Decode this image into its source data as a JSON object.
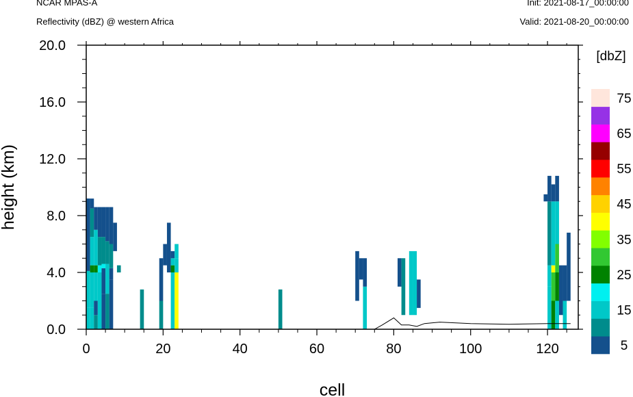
{
  "header": {
    "model": "NCAR MPAS-A",
    "field": "Reflectivity (dBZ) @ western Africa",
    "init": "Init: 2021-08-17_00:00:00",
    "valid": "Valid: 2021-08-20_00:00:00"
  },
  "chart_data": {
    "type": "heatmap",
    "title": "Reflectivity (dBZ) @ western Africa",
    "xlabel": "cell",
    "ylabel": "height (km)",
    "xlim": [
      0,
      128
    ],
    "ylim": [
      0,
      20
    ],
    "x_ticks": [
      0,
      20,
      40,
      60,
      80,
      100,
      120
    ],
    "x_tick_labels": [
      "0",
      "20",
      "40",
      "60",
      "80",
      "100",
      "120"
    ],
    "y_ticks": [
      0,
      4,
      8,
      12,
      16,
      20
    ],
    "y_tick_labels": [
      "0.0",
      "4.0",
      "8.0",
      "12.0",
      "16.0",
      "20.0"
    ],
    "colorbar": {
      "unit": "[dbZ]",
      "levels": [
        5,
        10,
        15,
        20,
        25,
        30,
        35,
        40,
        45,
        50,
        55,
        60,
        65,
        70,
        75
      ],
      "labels": [
        "5",
        "15",
        "25",
        "35",
        "45",
        "55",
        "65",
        "75"
      ],
      "colors": [
        "#14508c",
        "#008c8c",
        "#00c8c8",
        "#00f0f0",
        "#008200",
        "#32c832",
        "#82ff00",
        "#ffff00",
        "#ffd200",
        "#ff8200",
        "#ff0000",
        "#960000",
        "#ff00ff",
        "#9632e6",
        "#ffe6dc"
      ]
    },
    "columns": [
      {
        "x": 0.5,
        "segments": [
          [
            0,
            1.5,
            15
          ],
          [
            1.5,
            4.1,
            15
          ],
          [
            4.1,
            4.5,
            5
          ],
          [
            4.5,
            5,
            25
          ],
          [
            5,
            9.2,
            5
          ],
          [
            9.2,
            4.3,
            5
          ]
        ]
      },
      {
        "x": 1.5,
        "segments": [
          [
            0,
            1.5,
            15
          ],
          [
            1.5,
            4,
            15
          ],
          [
            4,
            4.5,
            25
          ],
          [
            4.5,
            6.5,
            15
          ],
          [
            6.5,
            8.5,
            10
          ],
          [
            8.5,
            9.2,
            5
          ]
        ]
      },
      {
        "x": 2.5,
        "segments": [
          [
            0,
            1,
            10
          ],
          [
            1,
            2,
            5
          ],
          [
            2,
            4,
            15
          ],
          [
            4,
            4.5,
            25
          ],
          [
            4.5,
            7,
            15
          ],
          [
            7,
            8.6,
            5
          ]
        ]
      },
      {
        "x": 3.5,
        "segments": [
          [
            0,
            2,
            15
          ],
          [
            2,
            4,
            15
          ],
          [
            4,
            4.5,
            20
          ],
          [
            4.5,
            6.5,
            10
          ],
          [
            6.5,
            8.6,
            5
          ]
        ]
      },
      {
        "x": 4.5,
        "segments": [
          [
            0,
            2.5,
            5
          ],
          [
            2.5,
            4.3,
            5
          ],
          [
            4.3,
            4.6,
            20
          ],
          [
            4.6,
            6.5,
            10
          ],
          [
            6.5,
            8.6,
            5
          ]
        ]
      },
      {
        "x": 5.5,
        "segments": [
          [
            0,
            2.5,
            10
          ],
          [
            2.5,
            4,
            15
          ],
          [
            4,
            4.6,
            15
          ],
          [
            4.6,
            6.2,
            10
          ],
          [
            6.2,
            8.6,
            5
          ]
        ]
      },
      {
        "x": 6.5,
        "segments": [
          [
            0,
            3.5,
            5
          ],
          [
            3.5,
            4.3,
            5
          ],
          [
            4.3,
            6,
            10
          ],
          [
            6,
            8.6,
            5
          ]
        ]
      },
      {
        "x": 7.5,
        "segments": [
          [
            5.5,
            7.5,
            5
          ]
        ]
      },
      {
        "x": 8.5,
        "segments": [
          [
            4,
            4.5,
            10
          ]
        ]
      },
      {
        "x": 14.5,
        "segments": [
          [
            0,
            2.8,
            10
          ]
        ]
      },
      {
        "x": 19.5,
        "segments": [
          [
            0,
            2,
            10
          ],
          [
            2,
            5,
            5
          ]
        ]
      },
      {
        "x": 20.5,
        "segments": [
          [
            4.5,
            6,
            5
          ]
        ]
      },
      {
        "x": 21.5,
        "segments": [
          [
            4,
            7.5,
            5
          ]
        ]
      },
      {
        "x": 22.5,
        "segments": [
          [
            0,
            4,
            15
          ],
          [
            4,
            4.5,
            25
          ],
          [
            4.5,
            5,
            15
          ],
          [
            5,
            5.5,
            5
          ]
        ]
      },
      {
        "x": 23.5,
        "segments": [
          [
            0,
            4,
            40
          ],
          [
            4,
            5,
            15
          ],
          [
            5,
            6,
            15
          ]
        ]
      },
      {
        "x": 50.5,
        "segments": [
          [
            0,
            2.8,
            10
          ]
        ]
      },
      {
        "x": 70.5,
        "segments": [
          [
            2,
            5.5,
            5
          ]
        ]
      },
      {
        "x": 71.5,
        "segments": [
          [
            3.5,
            5,
            5
          ]
        ]
      },
      {
        "x": 72.5,
        "segments": [
          [
            0,
            3,
            15
          ],
          [
            3,
            5,
            5
          ]
        ]
      },
      {
        "x": 81.5,
        "segments": [
          [
            3,
            5,
            5
          ]
        ]
      },
      {
        "x": 82.5,
        "segments": [
          [
            1,
            5,
            10
          ]
        ]
      },
      {
        "x": 84.5,
        "segments": [
          [
            1,
            5.5,
            15
          ]
        ]
      },
      {
        "x": 85.5,
        "segments": [
          [
            1,
            5.5,
            15
          ]
        ]
      },
      {
        "x": 86.5,
        "segments": [
          [
            1.5,
            3.5,
            5
          ]
        ]
      },
      {
        "x": 119.5,
        "segments": [
          [
            9,
            9.5,
            5
          ]
        ]
      },
      {
        "x": 120.5,
        "segments": [
          [
            0,
            3,
            15
          ],
          [
            3,
            4.5,
            15
          ],
          [
            4.5,
            9,
            10
          ],
          [
            9,
            10.8,
            5
          ]
        ]
      },
      {
        "x": 121.5,
        "segments": [
          [
            0,
            2,
            25
          ],
          [
            2,
            4,
            30
          ],
          [
            4,
            4.5,
            40
          ],
          [
            4.5,
            9,
            15
          ],
          [
            9,
            10.2,
            5
          ]
        ]
      },
      {
        "x": 122.5,
        "segments": [
          [
            0,
            2,
            15
          ],
          [
            2,
            4,
            25
          ],
          [
            4,
            6,
            30
          ],
          [
            6,
            9,
            15
          ],
          [
            9,
            10.8,
            5
          ]
        ]
      },
      {
        "x": 123.5,
        "segments": [
          [
            1,
            4.5,
            5
          ]
        ]
      },
      {
        "x": 124.5,
        "segments": [
          [
            0,
            2,
            15
          ],
          [
            2,
            4.5,
            5
          ]
        ]
      },
      {
        "x": 125.5,
        "segments": [
          [
            2,
            6.8,
            5
          ]
        ]
      }
    ],
    "terrain": [
      [
        0,
        0
      ],
      [
        75,
        0
      ],
      [
        77,
        0.3
      ],
      [
        80,
        0.8
      ],
      [
        82,
        0.3
      ],
      [
        84,
        0.3
      ],
      [
        86,
        0.2
      ],
      [
        88,
        0.4
      ],
      [
        92,
        0.5
      ],
      [
        100,
        0.4
      ],
      [
        110,
        0.35
      ],
      [
        120,
        0.4
      ],
      [
        126,
        0.4
      ]
    ]
  }
}
